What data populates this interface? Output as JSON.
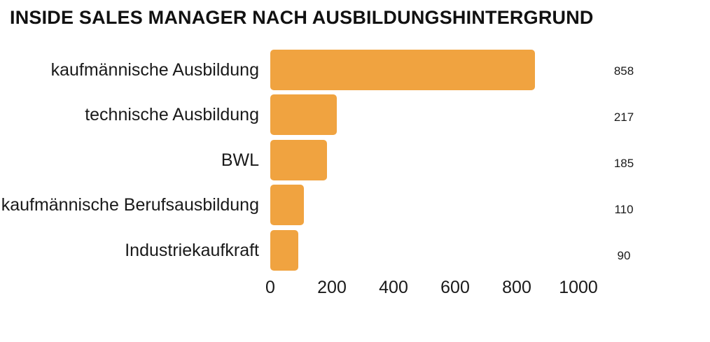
{
  "title": "INSIDE SALES MANAGER NACH AUSBILDUNGSHINTERGRUND",
  "chart_data": {
    "type": "bar",
    "orientation": "horizontal",
    "title": "INSIDE SALES MANAGER NACH AUSBILDUNGSHINTERGRUND",
    "categories": [
      "kaufmännische Ausbildung",
      "technische Ausbildung",
      "BWL",
      "kaufmännische Berufsausbildung",
      "Industriekaufkraft"
    ],
    "values": [
      858,
      217,
      185,
      110,
      90
    ],
    "value_labels": [
      "858",
      "217",
      "185",
      "110",
      "90"
    ],
    "x_ticks": [
      "0",
      "200",
      "400",
      "600",
      "800",
      "1000"
    ],
    "xlim": [
      0,
      1000
    ],
    "bar_color": "#F0A340",
    "grid": false,
    "legend": false,
    "value_label_position": "right-column"
  }
}
